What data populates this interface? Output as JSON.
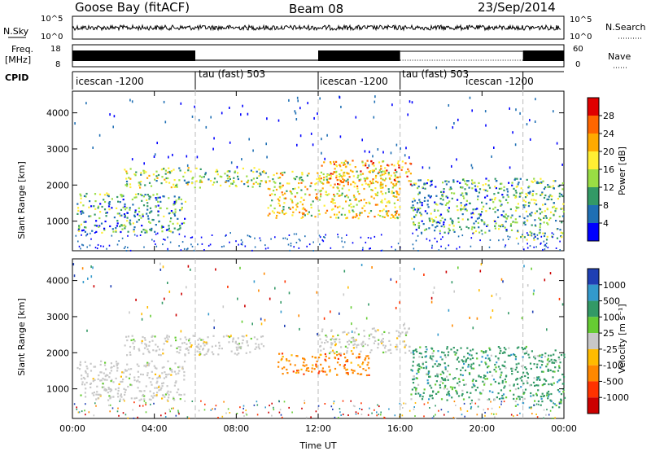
{
  "header": {
    "station": "Goose Bay (fitACF)",
    "beam": "Beam 08",
    "date": "23/Sep/2014"
  },
  "panels": {
    "nsky": {
      "label": "N.Sky",
      "ticks": [
        "10^5",
        "10^0"
      ],
      "right_label": "N.Search",
      "right_ticks": [
        "10^5",
        "10^0"
      ]
    },
    "freq": {
      "label_line1": "Freq.",
      "label_line2": "[MHz]",
      "ticks": [
        "18",
        "8"
      ],
      "right_label": "Nave",
      "right_ticks": [
        "60",
        "0"
      ]
    },
    "cpid": {
      "label": "CPID",
      "segments": [
        {
          "name": "icescan -1200",
          "start": 0,
          "end": 6
        },
        {
          "name": "tau (fast) 503",
          "start": 6,
          "end": 12
        },
        {
          "name": "icescan -1200",
          "start": 12,
          "end": 16
        },
        {
          "name": "tau (fast) 503",
          "start": 16,
          "end": 22
        },
        {
          "name": "icescan -1200",
          "start": 18.5,
          "end": 22
        }
      ]
    }
  },
  "colorbars": {
    "power": {
      "label": "Power [dB]",
      "ticks": [
        "28",
        "24",
        "20",
        "16",
        "12",
        "8",
        "4"
      ],
      "colors": [
        "#e00000",
        "#ff6600",
        "#ffaa00",
        "#ffee33",
        "#99dd44",
        "#339966",
        "#1f6fb4",
        "#0000ff"
      ]
    },
    "velocity": {
      "label": "Velocity [m s⁻¹]",
      "ticks": [
        "1000",
        "500",
        "100",
        "25",
        "-25",
        "-100",
        "-500",
        "-1000"
      ],
      "colors": [
        "#1f3fb4",
        "#3399cc",
        "#339966",
        "#66cc33",
        "#c8c8c8",
        "#ffbb00",
        "#ff8800",
        "#ff3300",
        "#cc0000"
      ]
    }
  },
  "chart_data": [
    {
      "type": "heatmap",
      "title": "Power",
      "xlabel": "Time UT",
      "ylabel": "Slant Range [km]",
      "x_ticks": [
        "00:00",
        "04:00",
        "08:00",
        "12:00",
        "16:00",
        "20:00",
        "00:00"
      ],
      "y_ticks": [
        "1000",
        "2000",
        "3000",
        "4000"
      ],
      "xlim_hours": [
        0,
        24
      ],
      "ylim_km": [
        180,
        4600
      ],
      "scatter_bands": [
        {
          "t0": 0.2,
          "t1": 5.5,
          "r0": 700,
          "r1": 1800,
          "p": 10
        },
        {
          "t0": 2.5,
          "t1": 9.5,
          "r0": 1950,
          "r1": 2500,
          "p": 14
        },
        {
          "t0": 9.5,
          "t1": 16.0,
          "r0": 1100,
          "r1": 2400,
          "p": 18
        },
        {
          "t0": 12.0,
          "t1": 16.5,
          "r0": 2000,
          "r1": 2700,
          "p": 22
        },
        {
          "t0": 16.5,
          "t1": 21.5,
          "r0": 700,
          "r1": 2200,
          "p": 10
        },
        {
          "t0": 21.5,
          "t1": 24.0,
          "r0": 500,
          "r1": 2200,
          "p": 12
        }
      ]
    },
    {
      "type": "heatmap",
      "title": "Velocity",
      "xlabel": "Time UT",
      "ylabel": "Slant Range [km]",
      "x_ticks": [
        "00:00",
        "04:00",
        "08:00",
        "12:00",
        "16:00",
        "20:00",
        "00:00"
      ],
      "y_ticks": [
        "1000",
        "2000",
        "3000",
        "4000"
      ],
      "xlim_hours": [
        0,
        24
      ],
      "ylim_km": [
        180,
        4600
      ],
      "scatter_bands": [
        {
          "t0": 0.2,
          "t1": 5.5,
          "r0": 700,
          "r1": 1800,
          "v": 0
        },
        {
          "t0": 2.5,
          "t1": 9.5,
          "r0": 1950,
          "r1": 2500,
          "v": 0
        },
        {
          "t0": 10.0,
          "t1": 14.5,
          "r0": 1400,
          "r1": 2000,
          "v": -500
        },
        {
          "t0": 12.0,
          "t1": 16.5,
          "r0": 2000,
          "r1": 2700,
          "v": 0
        },
        {
          "t0": 16.5,
          "t1": 21.5,
          "r0": 700,
          "r1": 2200,
          "v": 100
        },
        {
          "t0": 21.5,
          "t1": 24.0,
          "r0": 500,
          "r1": 2200,
          "v": 100
        }
      ]
    }
  ]
}
